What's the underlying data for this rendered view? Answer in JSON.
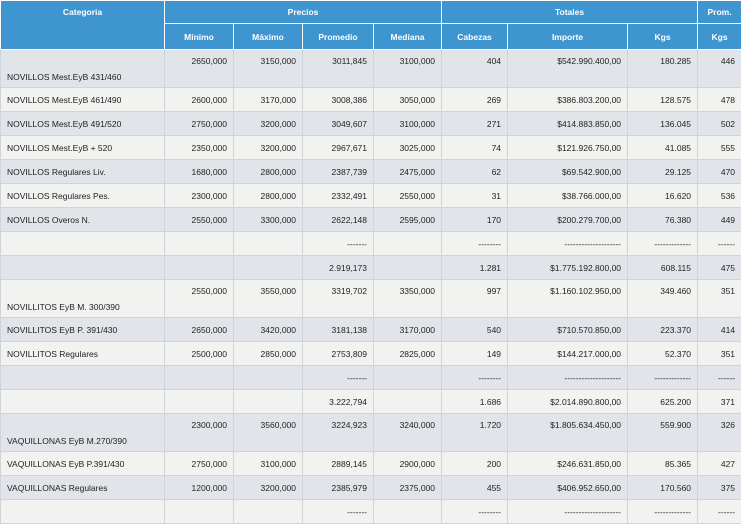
{
  "headers": {
    "categoria": "Categoria",
    "precios": "Precios",
    "totales": "Totales",
    "prom": "Prom.",
    "sub": [
      "Mínimo",
      "Máximo",
      "Promedio",
      "Mediana",
      "Cabezas",
      "Importe",
      "Kgs",
      "Kgs"
    ]
  },
  "rows": [
    {
      "cat": "NOVILLOS Mest.EyB 431/460",
      "cells": [
        "2650,000",
        "3150,000",
        "3011,845",
        "3100,000",
        "404",
        "$542.990.400,00",
        "180.285",
        "446"
      ]
    },
    {
      "cat": "NOVILLOS Mest.EyB 461/490",
      "cells": [
        "2600,000",
        "3170,000",
        "3008,386",
        "3050,000",
        "269",
        "$386.803.200,00",
        "128.575",
        "478"
      ]
    },
    {
      "cat": "NOVILLOS Mest.EyB 491/520",
      "cells": [
        "2750,000",
        "3200,000",
        "3049,607",
        "3100,000",
        "271",
        "$414.883.850,00",
        "136.045",
        "502"
      ]
    },
    {
      "cat": "NOVILLOS Mest.EyB + 520",
      "cells": [
        "2350,000",
        "3200,000",
        "2967,671",
        "3025,000",
        "74",
        "$121.926.750,00",
        "41.085",
        "555"
      ]
    },
    {
      "cat": "NOVILLOS Regulares Liv.",
      "cells": [
        "1680,000",
        "2800,000",
        "2387,739",
        "2475,000",
        "62",
        "$69.542.900,00",
        "29.125",
        "470"
      ]
    },
    {
      "cat": "NOVILLOS Regulares Pes.",
      "cells": [
        "2300,000",
        "2800,000",
        "2332,491",
        "2550,000",
        "31",
        "$38.766.000,00",
        "16.620",
        "536"
      ]
    },
    {
      "cat": "NOVILLOS Overos N.",
      "cells": [
        "2550,000",
        "3300,000",
        "2622,148",
        "2595,000",
        "170",
        "$200.279.700,00",
        "76.380",
        "449"
      ]
    },
    {
      "cat": "",
      "cells": [
        "",
        "",
        "-------",
        "",
        "--------",
        "--------------------",
        "-------------",
        "------"
      ]
    },
    {
      "cat": "",
      "cells": [
        "",
        "",
        "2.919,173",
        "",
        "1.281",
        "$1.775.192.800,00",
        "608.115",
        "475"
      ]
    },
    {
      "cat": "NOVILLITOS EyB M. 300/390",
      "cells": [
        "2550,000",
        "3550,000",
        "3319,702",
        "3350,000",
        "997",
        "$1.160.102.950,00",
        "349.460",
        "351"
      ]
    },
    {
      "cat": "NOVILLITOS EyB P. 391/430",
      "cells": [
        "2650,000",
        "3420,000",
        "3181,138",
        "3170,000",
        "540",
        "$710.570.850,00",
        "223.370",
        "414"
      ]
    },
    {
      "cat": "NOVILLITOS Regulares",
      "cells": [
        "2500,000",
        "2850,000",
        "2753,809",
        "2825,000",
        "149",
        "$144.217.000,00",
        "52.370",
        "351"
      ]
    },
    {
      "cat": "",
      "cells": [
        "",
        "",
        "-------",
        "",
        "--------",
        "--------------------",
        "-------------",
        "------"
      ]
    },
    {
      "cat": "",
      "cells": [
        "",
        "",
        "3.222,794",
        "",
        "1.686",
        "$2.014.890.800,00",
        "625.200",
        "371"
      ]
    },
    {
      "cat": "VAQUILLONAS EyB M.270/390",
      "cells": [
        "2300,000",
        "3560,000",
        "3224,923",
        "3240,000",
        "1.720",
        "$1.805.634.450,00",
        "559.900",
        "326"
      ]
    },
    {
      "cat": "VAQUILLONAS EyB P.391/430",
      "cells": [
        "2750,000",
        "3100,000",
        "2889,145",
        "2900,000",
        "200",
        "$246.631.850,00",
        "85.365",
        "427"
      ]
    },
    {
      "cat": "VAQUILLONAS Regulares",
      "cells": [
        "1200,000",
        "3200,000",
        "2385,979",
        "2375,000",
        "455",
        "$406.952.650,00",
        "170.560",
        "375"
      ]
    },
    {
      "cat": "",
      "cells": [
        "",
        "",
        "-------",
        "",
        "--------",
        "--------------------",
        "-------------",
        "------"
      ]
    }
  ]
}
